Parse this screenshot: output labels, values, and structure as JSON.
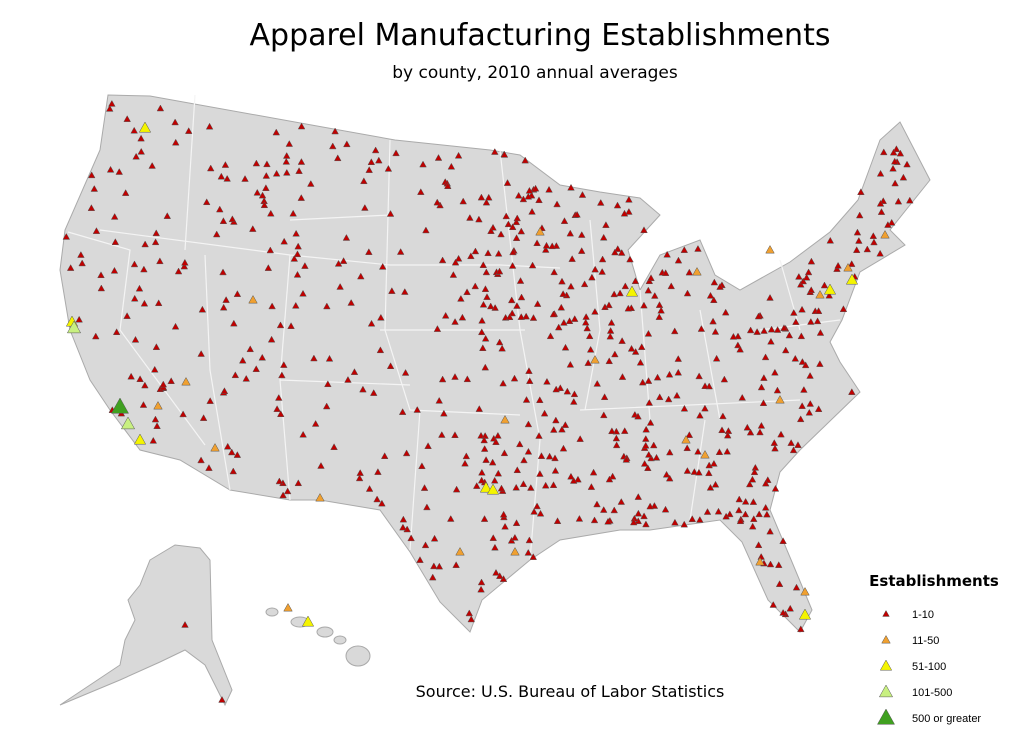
{
  "header": {
    "title": "Apparel Manufacturing Establishments",
    "subtitle": "by county, 2010 annual averages"
  },
  "source": "Source: U.S. Bureau of Labor Statistics",
  "legend": {
    "title": "Establishments",
    "items": [
      {
        "label": "1-10",
        "color": "#c00000"
      },
      {
        "label": "11-50",
        "color": "#f0a030"
      },
      {
        "label": "51-100",
        "color": "#f4f400"
      },
      {
        "label": "101-500",
        "color": "#c8f080"
      },
      {
        "label": "500 or greater",
        "color": "#40a020"
      }
    ]
  }
}
